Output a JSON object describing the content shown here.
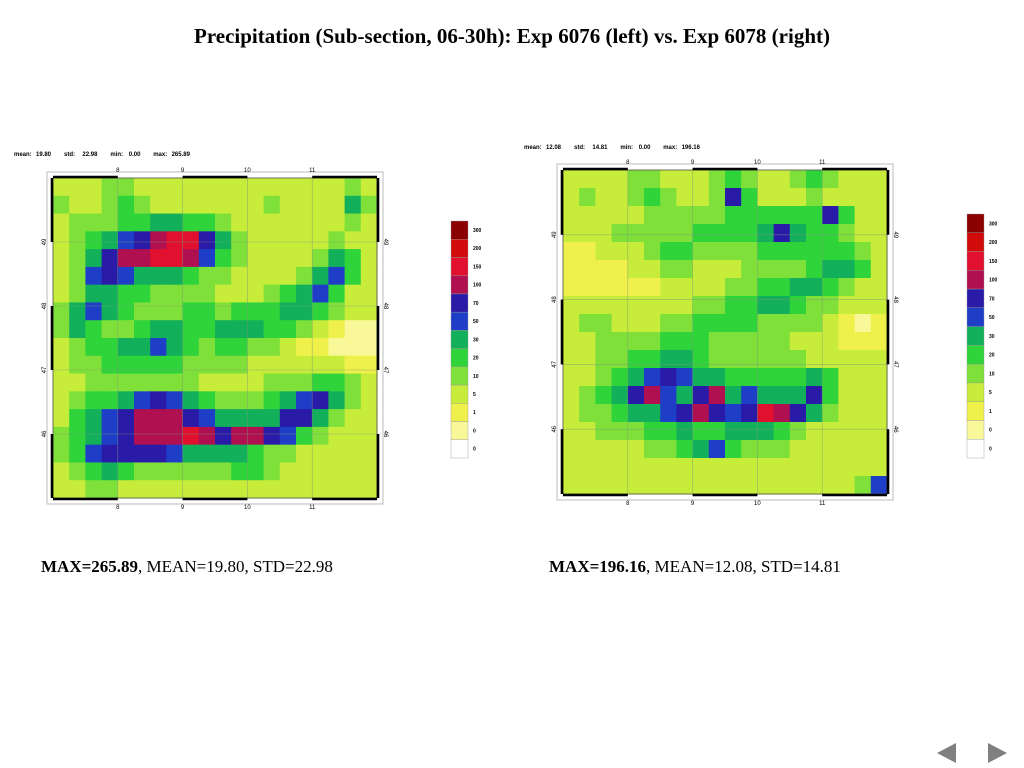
{
  "slide": {
    "title": "Precipitation (Sub-section, 06-30h): Exp 6076 (left) vs. Exp 6078 (right)"
  },
  "panels": [
    {
      "id": "left",
      "header": {
        "mean_label": "mean:",
        "mean": "19.80",
        "std_label": "std:",
        "std": "22.98",
        "min_label": "min:",
        "min": "0.00",
        "max_label": "max:",
        "max": "265.89"
      },
      "caption": {
        "max": "MAX=265.89",
        "rest": ", MEAN=19.80, STD=22.98"
      },
      "x_ticks": [
        "8",
        "9",
        "10",
        "11"
      ],
      "y_ticks": [
        "49",
        "48",
        "47",
        "46"
      ],
      "field": [
        [
          3,
          3,
          3,
          4,
          4,
          3,
          3,
          3,
          3,
          3,
          3,
          3,
          3,
          3,
          3,
          3,
          3,
          3,
          4,
          3
        ],
        [
          4,
          3,
          3,
          4,
          5,
          4,
          3,
          3,
          3,
          3,
          3,
          3,
          3,
          4,
          3,
          3,
          3,
          3,
          6,
          4
        ],
        [
          3,
          4,
          4,
          4,
          5,
          5,
          6,
          6,
          5,
          5,
          4,
          3,
          3,
          3,
          3,
          3,
          3,
          3,
          4,
          3
        ],
        [
          3,
          4,
          5,
          6,
          7,
          8,
          9,
          10,
          10,
          8,
          6,
          4,
          3,
          3,
          3,
          3,
          3,
          4,
          3,
          3
        ],
        [
          3,
          4,
          6,
          8,
          9,
          9,
          10,
          10,
          9,
          7,
          5,
          4,
          3,
          3,
          3,
          3,
          4,
          6,
          5,
          3
        ],
        [
          3,
          4,
          7,
          8,
          7,
          6,
          6,
          6,
          5,
          4,
          4,
          3,
          3,
          3,
          3,
          4,
          6,
          7,
          5,
          3
        ],
        [
          3,
          4,
          6,
          6,
          5,
          5,
          4,
          4,
          4,
          4,
          3,
          3,
          3,
          4,
          5,
          6,
          7,
          5,
          3,
          3
        ],
        [
          4,
          6,
          7,
          6,
          5,
          4,
          4,
          4,
          5,
          5,
          4,
          5,
          5,
          5,
          6,
          6,
          5,
          4,
          3,
          3
        ],
        [
          4,
          6,
          5,
          4,
          4,
          5,
          6,
          6,
          5,
          5,
          6,
          6,
          6,
          5,
          5,
          4,
          3,
          2,
          1,
          1
        ],
        [
          3,
          4,
          5,
          5,
          6,
          6,
          7,
          6,
          5,
          4,
          5,
          5,
          4,
          4,
          3,
          2,
          2,
          1,
          1,
          1
        ],
        [
          3,
          4,
          4,
          5,
          5,
          5,
          5,
          5,
          4,
          4,
          4,
          4,
          3,
          3,
          3,
          3,
          3,
          3,
          2,
          2
        ],
        [
          3,
          3,
          4,
          4,
          4,
          4,
          4,
          4,
          4,
          3,
          3,
          3,
          3,
          4,
          4,
          4,
          5,
          5,
          4,
          3
        ],
        [
          3,
          4,
          5,
          5,
          6,
          7,
          8,
          7,
          6,
          5,
          4,
          4,
          4,
          5,
          6,
          7,
          8,
          6,
          4,
          3
        ],
        [
          3,
          5,
          6,
          7,
          8,
          9,
          9,
          9,
          8,
          7,
          6,
          6,
          6,
          6,
          8,
          8,
          6,
          4,
          3,
          3
        ],
        [
          4,
          5,
          6,
          7,
          8,
          9,
          9,
          9,
          10,
          9,
          8,
          9,
          9,
          8,
          7,
          5,
          4,
          3,
          3,
          3
        ],
        [
          4,
          5,
          7,
          8,
          8,
          8,
          8,
          7,
          6,
          6,
          6,
          6,
          5,
          4,
          4,
          3,
          3,
          3,
          3,
          3
        ],
        [
          3,
          4,
          5,
          6,
          5,
          4,
          4,
          4,
          4,
          4,
          4,
          5,
          5,
          4,
          3,
          3,
          3,
          3,
          3,
          3
        ],
        [
          3,
          3,
          4,
          4,
          3,
          3,
          3,
          3,
          3,
          3,
          3,
          3,
          3,
          3,
          3,
          3,
          3,
          3,
          3,
          3
        ]
      ]
    },
    {
      "id": "right",
      "header": {
        "mean_label": "mean:",
        "mean": "12.08",
        "std_label": "std:",
        "std": "14.81",
        "min_label": "min:",
        "min": "0.00",
        "max_label": "max:",
        "max": "196.16"
      },
      "caption": {
        "max": "MAX=196.16",
        "rest": ", MEAN=12.08, STD=14.81"
      },
      "x_ticks": [
        "8",
        "9",
        "10",
        "11"
      ],
      "y_ticks": [
        "49",
        "48",
        "47",
        "46"
      ],
      "field": [
        [
          3,
          3,
          3,
          3,
          4,
          4,
          3,
          3,
          3,
          4,
          5,
          4,
          3,
          3,
          4,
          5,
          4,
          3,
          3,
          3
        ],
        [
          3,
          4,
          3,
          3,
          4,
          5,
          4,
          3,
          3,
          4,
          8,
          5,
          3,
          3,
          3,
          4,
          3,
          3,
          3,
          3
        ],
        [
          3,
          3,
          3,
          3,
          3,
          4,
          4,
          4,
          4,
          4,
          5,
          5,
          5,
          5,
          5,
          5,
          8,
          5,
          3,
          3
        ],
        [
          3,
          3,
          3,
          4,
          4,
          4,
          4,
          4,
          5,
          5,
          5,
          5,
          6,
          8,
          6,
          5,
          5,
          4,
          3,
          3
        ],
        [
          2,
          2,
          3,
          3,
          3,
          4,
          5,
          5,
          4,
          4,
          4,
          4,
          5,
          5,
          5,
          5,
          5,
          5,
          4,
          3
        ],
        [
          2,
          2,
          2,
          2,
          3,
          3,
          4,
          4,
          3,
          3,
          3,
          4,
          4,
          4,
          4,
          5,
          6,
          6,
          5,
          3
        ],
        [
          2,
          2,
          2,
          2,
          2,
          2,
          3,
          3,
          3,
          3,
          4,
          4,
          5,
          5,
          6,
          6,
          5,
          4,
          3,
          3
        ],
        [
          3,
          3,
          3,
          3,
          3,
          3,
          3,
          3,
          4,
          4,
          5,
          5,
          6,
          6,
          5,
          4,
          4,
          3,
          3,
          3
        ],
        [
          3,
          4,
          4,
          3,
          3,
          3,
          4,
          4,
          5,
          5,
          5,
          5,
          4,
          4,
          4,
          4,
          3,
          2,
          1,
          2
        ],
        [
          3,
          3,
          4,
          4,
          4,
          4,
          5,
          5,
          5,
          4,
          4,
          4,
          4,
          4,
          3,
          3,
          3,
          2,
          2,
          2
        ],
        [
          3,
          3,
          4,
          4,
          5,
          5,
          6,
          6,
          5,
          4,
          4,
          4,
          4,
          4,
          4,
          3,
          3,
          3,
          3,
          3
        ],
        [
          3,
          3,
          4,
          5,
          6,
          7,
          8,
          7,
          6,
          6,
          5,
          5,
          5,
          5,
          5,
          6,
          5,
          3,
          3,
          3
        ],
        [
          3,
          4,
          5,
          6,
          8,
          9,
          7,
          6,
          8,
          9,
          6,
          7,
          6,
          6,
          6,
          8,
          5,
          3,
          3,
          3
        ],
        [
          3,
          4,
          4,
          5,
          6,
          6,
          7,
          8,
          9,
          8,
          7,
          8,
          10,
          9,
          8,
          6,
          4,
          3,
          3,
          3
        ],
        [
          3,
          3,
          4,
          4,
          4,
          5,
          5,
          6,
          5,
          5,
          6,
          6,
          6,
          5,
          4,
          3,
          3,
          3,
          3,
          3
        ],
        [
          3,
          3,
          3,
          3,
          3,
          4,
          4,
          5,
          6,
          7,
          5,
          4,
          4,
          4,
          3,
          3,
          3,
          3,
          3,
          3
        ],
        [
          3,
          3,
          3,
          3,
          3,
          3,
          3,
          3,
          3,
          3,
          3,
          3,
          3,
          3,
          3,
          3,
          3,
          3,
          3,
          3
        ],
        [
          3,
          3,
          3,
          3,
          3,
          3,
          3,
          3,
          3,
          3,
          3,
          3,
          3,
          3,
          3,
          3,
          3,
          3,
          4,
          7
        ]
      ]
    }
  ],
  "colorbar": {
    "labels": [
      "300",
      "200",
      "150",
      "100",
      "70",
      "50",
      "30",
      "20",
      "10",
      "5",
      "1",
      "0",
      "0"
    ],
    "colors": [
      "#8b0000",
      "#d10a0a",
      "#e0102e",
      "#b01050",
      "#2a1aa8",
      "#1e3ec8",
      "#12b05a",
      "#2fd43a",
      "#7fe03a",
      "#c8ec3a",
      "#f0f04a",
      "#f8f898",
      "#ffffff"
    ]
  },
  "nav": {
    "prev_icon": "triangle-left-icon",
    "next_icon": "triangle-right-icon",
    "icon_color": "#808080"
  }
}
